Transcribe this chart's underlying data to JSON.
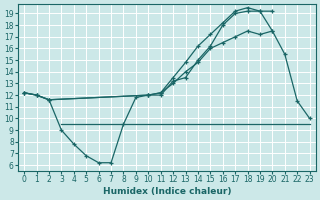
{
  "xlabel": "Humidex (Indice chaleur)",
  "bg_color": "#cce8e8",
  "line_color": "#1a6666",
  "grid_color": "#ffffff",
  "xlim": [
    -0.5,
    23.5
  ],
  "ylim": [
    5.5,
    19.8
  ],
  "xticks": [
    0,
    1,
    2,
    3,
    4,
    5,
    6,
    7,
    8,
    9,
    10,
    11,
    12,
    13,
    14,
    15,
    16,
    17,
    18,
    19,
    20,
    21,
    22,
    23
  ],
  "yticks": [
    6,
    7,
    8,
    9,
    10,
    11,
    12,
    13,
    14,
    15,
    16,
    17,
    18,
    19
  ],
  "curve_dip_x": [
    0,
    1,
    2,
    3,
    4,
    5,
    6,
    7,
    8,
    9,
    10,
    11,
    12,
    13,
    14,
    15,
    16,
    17,
    18,
    19,
    20,
    21,
    22,
    23
  ],
  "curve_dip_y": [
    12.2,
    12.0,
    11.6,
    9.0,
    7.8,
    6.8,
    6.2,
    6.2,
    9.5,
    11.8,
    12.0,
    12.0,
    13.2,
    13.5,
    15.0,
    16.2,
    18.0,
    19.0,
    19.2,
    19.2,
    17.5,
    15.5,
    11.5,
    10.0
  ],
  "curve_upper_x": [
    0,
    1,
    2,
    10,
    11,
    12,
    13,
    14,
    15,
    16,
    17,
    18,
    19,
    20
  ],
  "curve_upper_y": [
    12.2,
    12.0,
    11.6,
    12.0,
    12.2,
    13.5,
    14.8,
    16.2,
    17.2,
    18.2,
    19.2,
    19.5,
    19.2,
    19.2
  ],
  "curve_mid_x": [
    0,
    1,
    2,
    10,
    11,
    12,
    13,
    14,
    15,
    16,
    17,
    18,
    19,
    20
  ],
  "curve_mid_y": [
    12.2,
    12.0,
    11.6,
    12.0,
    12.2,
    13.0,
    14.0,
    14.8,
    16.0,
    16.5,
    17.0,
    17.5,
    17.2,
    17.5
  ],
  "flat_x": [
    3,
    4,
    5,
    6,
    7,
    8,
    9,
    10,
    11,
    12,
    13,
    14,
    15,
    16,
    17,
    18,
    19,
    20,
    21,
    22,
    23
  ],
  "flat_y": [
    9.5,
    9.5,
    9.5,
    9.5,
    9.5,
    9.5,
    9.5,
    9.5,
    9.5,
    9.5,
    9.5,
    9.5,
    9.5,
    9.5,
    9.5,
    9.5,
    9.5,
    9.5,
    9.5,
    9.5,
    9.5
  ]
}
